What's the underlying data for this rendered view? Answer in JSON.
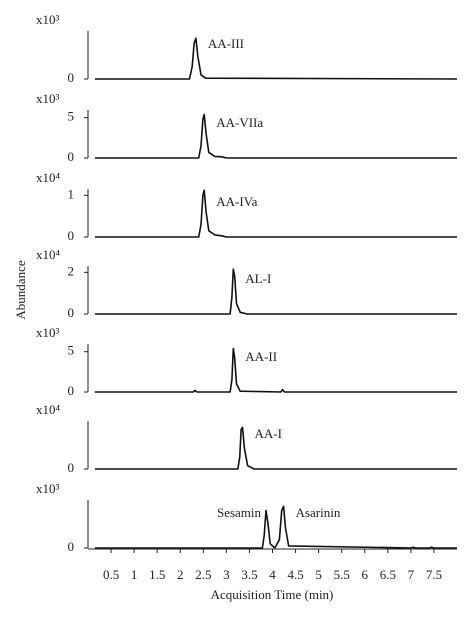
{
  "chart_data": [
    {
      "type": "line",
      "ylabel": "Abundance",
      "scale_label": "x10³",
      "xlim": [
        0,
        8
      ],
      "ylim": [
        0,
        1.2
      ],
      "yticks": [
        0
      ],
      "x": [
        0.15,
        2.2,
        2.26,
        2.3,
        2.34,
        2.38,
        2.45,
        2.55,
        8
      ],
      "series": [
        {
          "name": "AA-III",
          "color": "#111111",
          "values": [
            0,
            0,
            0.3,
            0.85,
            0.98,
            0.55,
            0.1,
            0.02,
            0
          ]
        }
      ]
    },
    {
      "type": "line",
      "scale_label": "x10³",
      "xlim": [
        0,
        8
      ],
      "ylim": [
        0,
        6.2
      ],
      "yticks": [
        0,
        5
      ],
      "x": [
        0.15,
        2.4,
        2.45,
        2.49,
        2.52,
        2.56,
        2.62,
        2.75,
        2.9,
        3.0,
        8
      ],
      "series": [
        {
          "name": "AA-VIIa",
          "color": "#111111",
          "values": [
            0,
            0,
            1.5,
            4.8,
            5.4,
            3,
            0.7,
            0.2,
            0.15,
            0,
            0
          ]
        }
      ]
    },
    {
      "type": "line",
      "scale_label": "x10⁴",
      "xlim": [
        0,
        8
      ],
      "ylim": [
        0,
        1.2
      ],
      "yticks": [
        0,
        1
      ],
      "x": [
        0.15,
        2.4,
        2.45,
        2.49,
        2.52,
        2.56,
        2.62,
        2.75,
        2.9,
        3.0,
        8
      ],
      "series": [
        {
          "name": "AA-IVa",
          "color": "#111111",
          "values": [
            0,
            0,
            0.3,
            1.0,
            1.12,
            0.6,
            0.15,
            0.05,
            0.03,
            0,
            0
          ]
        }
      ]
    },
    {
      "type": "line",
      "scale_label": "x10⁴",
      "xlim": [
        0,
        8
      ],
      "ylim": [
        0,
        2.4
      ],
      "yticks": [
        0,
        2
      ],
      "x": [
        0.15,
        3.08,
        3.12,
        3.15,
        3.18,
        3.22,
        3.3,
        3.45,
        8
      ],
      "series": [
        {
          "name": "AL-I",
          "color": "#111111",
          "values": [
            0,
            0,
            0.8,
            2.15,
            1.8,
            0.5,
            0.08,
            0,
            0
          ]
        }
      ]
    },
    {
      "type": "line",
      "scale_label": "x10³",
      "xlim": [
        0,
        8
      ],
      "ylim": [
        0,
        6.2
      ],
      "yticks": [
        0,
        5
      ],
      "x": [
        0.15,
        2.28,
        2.32,
        2.36,
        3.08,
        3.12,
        3.15,
        3.18,
        3.22,
        3.3,
        4.18,
        4.22,
        4.26,
        8
      ],
      "series": [
        {
          "name": "AA-II",
          "color": "#111111",
          "values": [
            0,
            0,
            0.2,
            0,
            0,
            1.5,
            5.4,
            4.2,
            1,
            0.1,
            0,
            0.3,
            0,
            0
          ]
        }
      ]
    },
    {
      "type": "line",
      "scale_label": "x10⁴",
      "xlim": [
        0,
        8
      ],
      "ylim": [
        0,
        1.2
      ],
      "yticks": [
        0
      ],
      "x": [
        0.15,
        3.25,
        3.29,
        3.32,
        3.35,
        3.39,
        3.46,
        3.6,
        8
      ],
      "series": [
        {
          "name": "AA-I",
          "color": "#111111",
          "values": [
            0,
            0,
            0.3,
            0.95,
            1.0,
            0.5,
            0.08,
            0,
            0
          ]
        }
      ]
    },
    {
      "type": "line",
      "scale_label": "x10³",
      "xlabel": "Acquisition Time (min)",
      "xlim": [
        0,
        8
      ],
      "ylim": [
        0,
        1.2
      ],
      "yticks": [
        0
      ],
      "xticks": [
        0.5,
        1,
        1.5,
        2,
        2.5,
        3,
        3.5,
        4,
        4.5,
        5,
        5.5,
        6,
        6.5,
        7,
        7.5
      ],
      "x": [
        0.15,
        3.78,
        3.82,
        3.86,
        3.9,
        3.95,
        4.05,
        4.15,
        4.2,
        4.24,
        4.28,
        4.35,
        7.0,
        7.05,
        7.1,
        7.4,
        7.45,
        7.5,
        8
      ],
      "series": [
        {
          "name": "Sesamin",
          "color": "#111111",
          "values": [
            0,
            0,
            0.3,
            0.9,
            0.6,
            0.1,
            0,
            null,
            null,
            null,
            null,
            null,
            null,
            null,
            null,
            null,
            null,
            null,
            null
          ]
        },
        {
          "name": "Asarinin",
          "color": "#111111",
          "values": [
            null,
            null,
            null,
            null,
            null,
            null,
            0,
            0.2,
            0.9,
            1.0,
            0.5,
            0.05,
            0,
            0.02,
            0,
            0,
            0.02,
            0,
            0
          ]
        }
      ]
    }
  ]
}
